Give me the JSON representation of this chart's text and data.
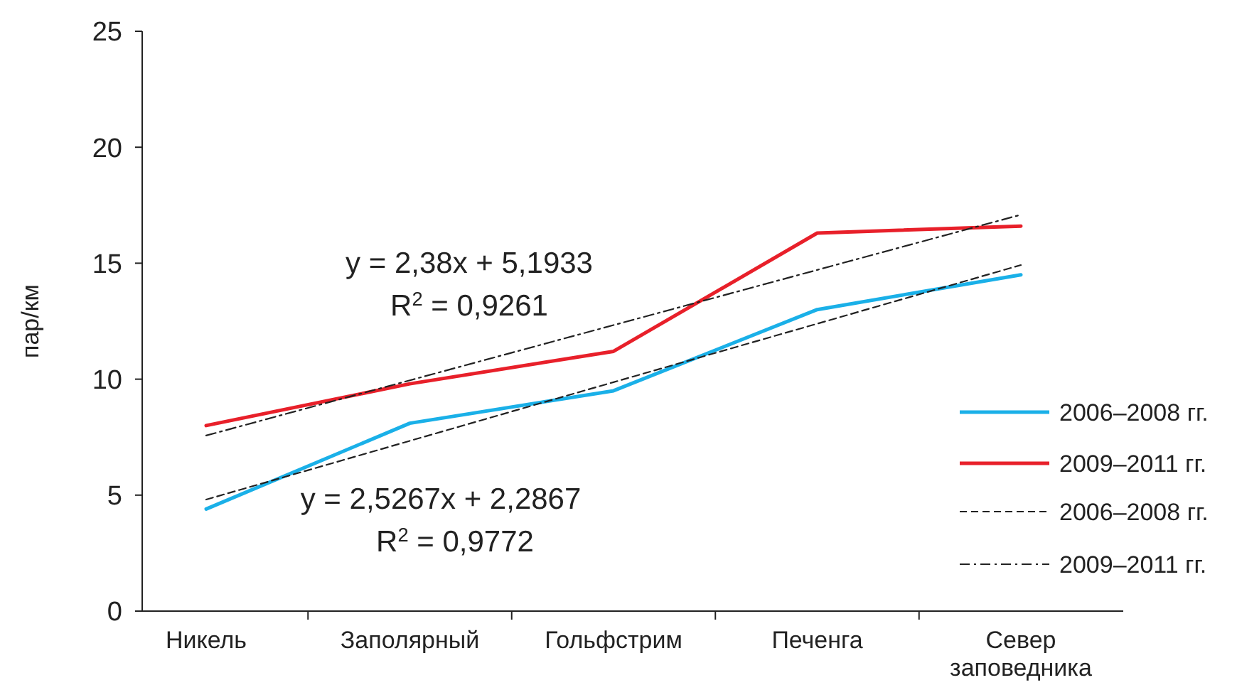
{
  "chart_data": {
    "type": "line",
    "ylabel": "пар/км",
    "categories": [
      "Никель",
      "Заполярный",
      "Гольфстрим",
      "Печенга",
      "Север заповедника"
    ],
    "series": [
      {
        "name": "2006–2008 гг.",
        "color": "#1ab0e8",
        "values": [
          4.4,
          8.1,
          9.5,
          13.0,
          14.5
        ]
      },
      {
        "name": "2009–2011 гг.",
        "color": "#e8202a",
        "values": [
          8.0,
          9.8,
          11.2,
          16.3,
          16.6
        ]
      },
      {
        "name": "2006–2008 гг.",
        "type": "line",
        "color": "#222222",
        "line_style": "dashed",
        "values": [
          4.81,
          7.34,
          9.87,
          12.39,
          14.92
        ]
      },
      {
        "name": "2009–2011 гг.",
        "type": "line",
        "color": "#222222",
        "line_style": "dashdot",
        "values": [
          7.57,
          9.95,
          12.33,
          14.71,
          17.09
        ]
      }
    ],
    "annotations": [
      "y = 2,38x + 5,1933",
      "R$^{2}$ = 0,9261",
      "y = 2,5267x + 2,2867",
      "R$^{2}$ = 0,9772"
    ],
    "ylim": [
      0,
      25
    ],
    "yticks": [
      0,
      5,
      10,
      15,
      20,
      25
    ],
    "legend": "right",
    "line_style": "solid"
  }
}
